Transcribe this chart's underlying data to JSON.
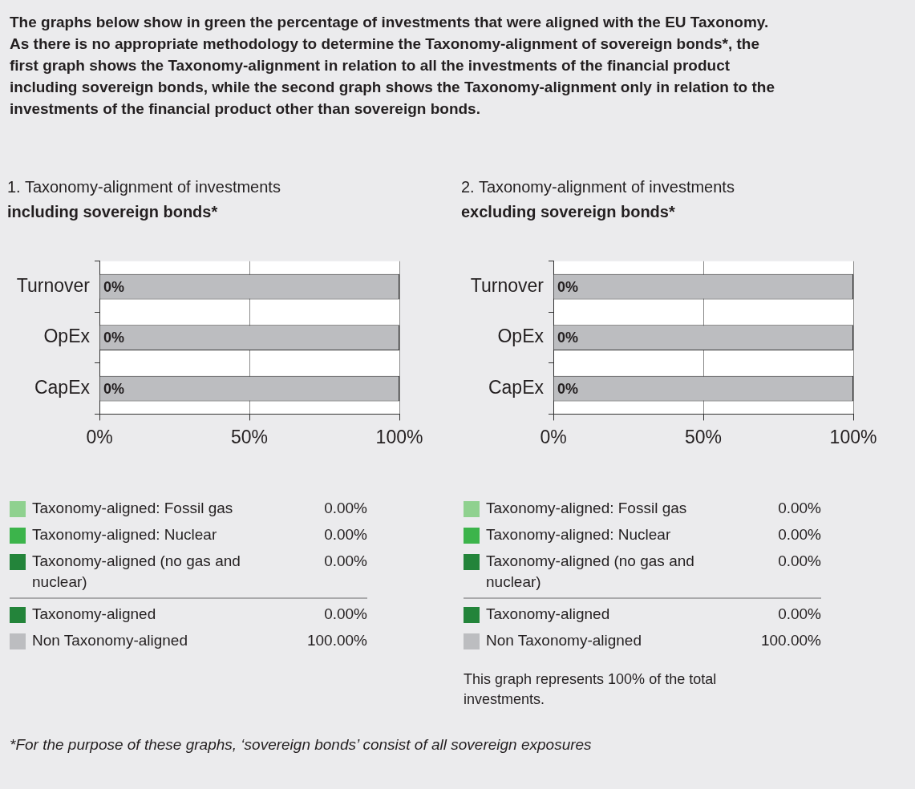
{
  "chart_data": [
    {
      "type": "other",
      "title": "The graphs below show in green the percentage of investments that were aligned with the EU Taxonomy. As there is no appropriate methodology to determine the Taxonomy-alignment of sovereign bonds*, the first graph shows the Taxonomy-alignment in relation to all the investments of the financial product including sovereign bonds, while the second graph shows the Taxonomy-alignment only in relation to the investments of the financial product other than sovereign bonds.",
      "annotations": [
        "*For the purpose of these graphs, ‘sovereign bonds’ consist of all sovereign exposures"
      ]
    },
    {
      "type": "bar",
      "orientation": "horizontal",
      "stacked": true,
      "title": "1. Taxonomy-alignment of investments",
      "subtitle": "including sovereign bonds*",
      "categories": [
        "Turnover",
        "OpEx",
        "CapEx"
      ],
      "series": [
        {
          "name": "Taxonomy-aligned: Fossil gas",
          "color": "#8fd18f",
          "values": [
            0,
            0,
            0
          ]
        },
        {
          "name": "Taxonomy-aligned: Nuclear",
          "color": "#3cb44b",
          "values": [
            0,
            0,
            0
          ]
        },
        {
          "name": "Taxonomy-aligned (no gas and nuclear)",
          "color": "#23843a",
          "values": [
            0,
            0,
            0
          ]
        },
        {
          "name": "Taxonomy-aligned",
          "color": "#23843a",
          "values": [
            0,
            0,
            0
          ]
        },
        {
          "name": "Non Taxonomy-aligned",
          "color": "#bcbdc0",
          "values": [
            100,
            100,
            100
          ]
        }
      ],
      "xlim": [
        0,
        100
      ],
      "xticks": [
        {
          "value": 0,
          "label": "0%"
        },
        {
          "value": 50,
          "label": "50%"
        },
        {
          "value": 100,
          "label": "100%"
        }
      ],
      "grid": "x",
      "legend": "bottom",
      "annotations": [
        "0.00%",
        "0.00%",
        "0.00%",
        "0.00%",
        "100.00%",
        "0%",
        "0%",
        "0%"
      ]
    },
    {
      "type": "bar",
      "orientation": "horizontal",
      "stacked": true,
      "title": "2. Taxonomy-alignment of investments",
      "subtitle": "excluding sovereign bonds*",
      "categories": [
        "Turnover",
        "OpEx",
        "CapEx"
      ],
      "series": [
        {
          "name": "Taxonomy-aligned: Fossil gas",
          "color": "#8fd18f",
          "values": [
            0,
            0,
            0
          ]
        },
        {
          "name": "Taxonomy-aligned: Nuclear",
          "color": "#3cb44b",
          "values": [
            0,
            0,
            0
          ]
        },
        {
          "name": "Taxonomy-aligned (no gas and nuclear)",
          "color": "#23843a",
          "values": [
            0,
            0,
            0
          ]
        },
        {
          "name": "Taxonomy-aligned",
          "color": "#23843a",
          "values": [
            0,
            0,
            0
          ]
        },
        {
          "name": "Non Taxonomy-aligned",
          "color": "#bcbdc0",
          "values": [
            100,
            100,
            100
          ]
        }
      ],
      "xlim": [
        0,
        100
      ],
      "xticks": [
        {
          "value": 0,
          "label": "0%"
        },
        {
          "value": 50,
          "label": "50%"
        },
        {
          "value": 100,
          "label": "100%"
        }
      ],
      "grid": "x",
      "legend": "bottom",
      "annotations": [
        "0.00%",
        "0.00%",
        "0.00%",
        "0.00%",
        "100.00%",
        "This graph represents 100% of the total investments.",
        "0%",
        "0%",
        "0%"
      ]
    }
  ]
}
